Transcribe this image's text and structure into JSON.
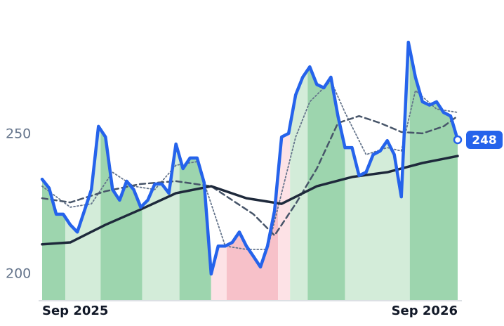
{
  "chart_data": {
    "type": "line",
    "ylim": [
      190.7,
      298
    ],
    "yticks": [
      200,
      250
    ],
    "xlim": [
      0,
      59
    ],
    "xticks": [
      {
        "value": 0,
        "label": "Sep 2025"
      },
      {
        "value": 59,
        "label": "Sep 2026"
      }
    ],
    "bands": [
      {
        "x0": 0,
        "x1": 3.3,
        "color": "#9dd5ae"
      },
      {
        "x0": 3.3,
        "x1": 8.3,
        "color": "#d3ecd9"
      },
      {
        "x0": 8.3,
        "x1": 14.2,
        "color": "#9dd5ae"
      },
      {
        "x0": 14.2,
        "x1": 19.5,
        "color": "#d3ecd9"
      },
      {
        "x0": 19.5,
        "x1": 24,
        "color": "#9dd5ae"
      },
      {
        "x0": 24,
        "x1": 26.2,
        "color": "#fde2e6"
      },
      {
        "x0": 26.2,
        "x1": 33.5,
        "color": "#f7c1c9"
      },
      {
        "x0": 33.5,
        "x1": 35.2,
        "color": "#fde2e6"
      },
      {
        "x0": 35.2,
        "x1": 37.7,
        "color": "#d3ecd9"
      },
      {
        "x0": 37.7,
        "x1": 43,
        "color": "#9dd5ae"
      },
      {
        "x0": 43,
        "x1": 52.2,
        "color": "#d3ecd9"
      },
      {
        "x0": 52.2,
        "x1": 59,
        "color": "#9dd5ae"
      }
    ],
    "series": [
      {
        "color": "#2563eb",
        "values": [
          233.9,
          230.7,
          221.4,
          221.4,
          217.6,
          215,
          222.6,
          230.2,
          252.8,
          249,
          230.2,
          226.4,
          233.2,
          230.2,
          223.9,
          226.4,
          232.2,
          232.2,
          228.9,
          246.5,
          237.7,
          241.5,
          241.5,
          232.7,
          200,
          210,
          210,
          211.3,
          215,
          210,
          206.3,
          202.5,
          210,
          222.6,
          249,
          250.3,
          264.1,
          270.4,
          274.1,
          267.8,
          266.6,
          270.4,
          256.5,
          245.2,
          245.2,
          235.2,
          236.4,
          242.7,
          244,
          247.7,
          242.7,
          227.6,
          282.9,
          270.4,
          261.6,
          260.4,
          261.6,
          257.8,
          256.5,
          248
        ]
      },
      {
        "color": "#1e293b",
        "x": [
          0,
          4,
          9,
          14,
          19,
          24,
          29,
          34,
          39,
          44,
          49,
          54,
          59
        ],
        "values": [
          210.6,
          211.3,
          217.6,
          223.1,
          228.9,
          231.4,
          227.1,
          225.1,
          231.4,
          234.7,
          236.4,
          239.7,
          242.2
        ]
      },
      {
        "color": "#475569",
        "x": [
          0,
          4,
          9,
          14,
          19,
          24,
          27,
          30,
          33,
          36,
          39,
          42,
          45,
          48,
          51,
          54,
          57,
          59
        ],
        "values": [
          227.1,
          225.6,
          229.6,
          232.2,
          233.2,
          231.4,
          226.4,
          221.4,
          213.8,
          225.1,
          237.7,
          254,
          256.5,
          254,
          250.8,
          250.3,
          252.8,
          256.5
        ]
      },
      {
        "color": "#64748b",
        "x": [
          0,
          4,
          7,
          10,
          13,
          16,
          19,
          22,
          24,
          26,
          29,
          32,
          34,
          36,
          38,
          41,
          43,
          46,
          49,
          51,
          53,
          56,
          59
        ],
        "values": [
          231.4,
          223.9,
          225.1,
          236.4,
          231.4,
          230.2,
          238.9,
          240.2,
          225.1,
          210,
          208.8,
          208.8,
          228.9,
          249,
          261.6,
          269.1,
          257.8,
          242.7,
          245.2,
          244,
          265.6,
          259,
          257.8
        ]
      }
    ]
  }
}
